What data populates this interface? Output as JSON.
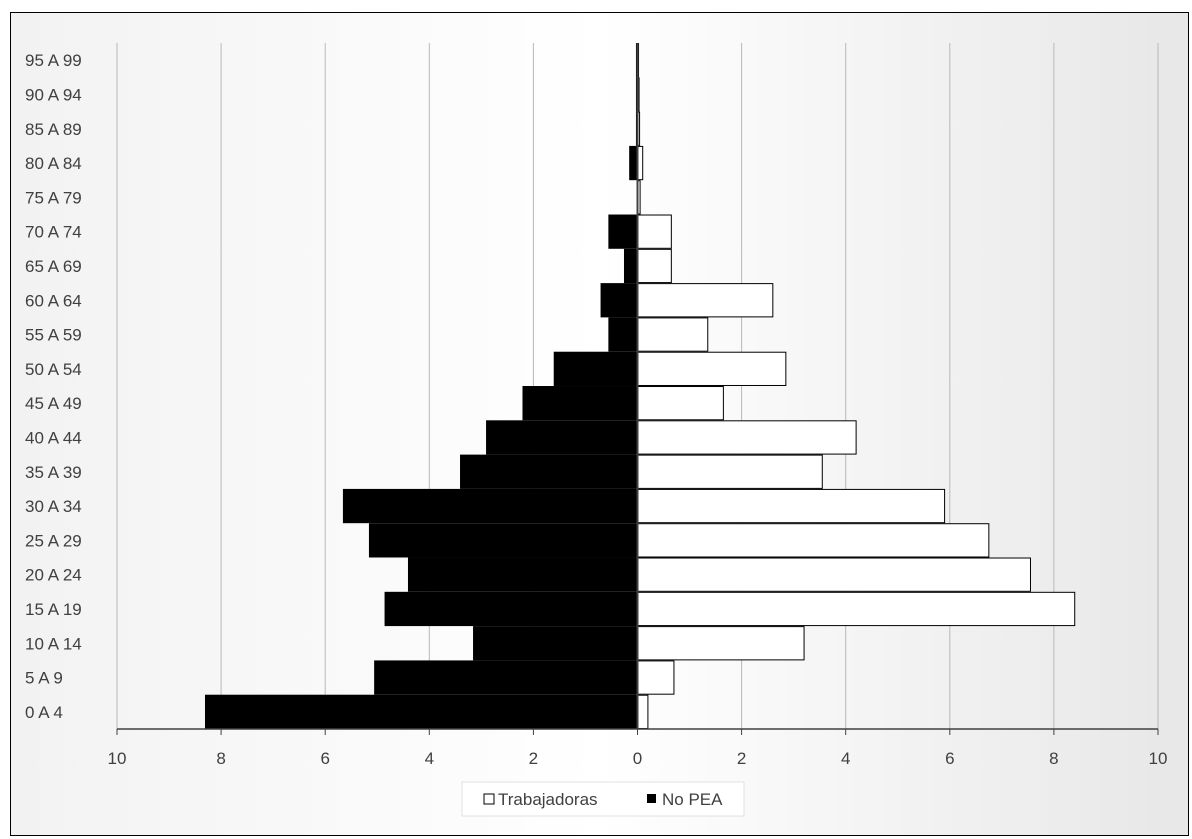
{
  "chart_data": {
    "type": "bar",
    "orientation": "horizontal",
    "layout": "population-pyramid",
    "categories": [
      "0 A 4",
      "5 A 9",
      "10 A 14",
      "15 A 19",
      "20 A 24",
      "25 A 29",
      "30 A 34",
      "35 A 39",
      "40 A 44",
      "45 A 49",
      "50 A 54",
      "55 A 59",
      "60 A 64",
      "65 A 69",
      "70 A 74",
      "75 A 79",
      "80 A 84",
      "85 A 89",
      "90 A 94",
      "95 A 99"
    ],
    "series": [
      {
        "name": "Trabajadoras",
        "side": "right",
        "color": "#ffffff",
        "values": [
          0.2,
          0.7,
          3.2,
          8.4,
          7.55,
          6.75,
          5.9,
          3.55,
          4.2,
          1.65,
          2.85,
          1.35,
          2.6,
          0.65,
          0.65,
          0.05,
          0.1,
          0.04,
          0.03,
          0.02
        ]
      },
      {
        "name": "No PEA",
        "side": "left",
        "color": "#000000",
        "values": [
          8.3,
          5.05,
          3.15,
          4.85,
          4.4,
          5.15,
          5.65,
          3.4,
          2.9,
          2.2,
          1.6,
          0.55,
          0.7,
          0.25,
          0.55,
          0.0,
          0.15,
          0.02,
          0.02,
          0.02
        ]
      }
    ],
    "xlim": [
      -10,
      10
    ],
    "xticks": [
      -10,
      -8,
      -6,
      -4,
      -2,
      0,
      2,
      4,
      6,
      8,
      10
    ],
    "xtick_labels": [
      "10",
      "8",
      "6",
      "4",
      "2",
      "0",
      "2",
      "4",
      "6",
      "8",
      "10"
    ],
    "title": "",
    "xlabel": "",
    "ylabel": "",
    "grid": "vertical",
    "legend": "bottom-center"
  },
  "legend": {
    "items": [
      {
        "label": "Trabajadoras",
        "color": "#ffffff"
      },
      {
        "label": "No PEA",
        "color": "#000000"
      }
    ]
  }
}
